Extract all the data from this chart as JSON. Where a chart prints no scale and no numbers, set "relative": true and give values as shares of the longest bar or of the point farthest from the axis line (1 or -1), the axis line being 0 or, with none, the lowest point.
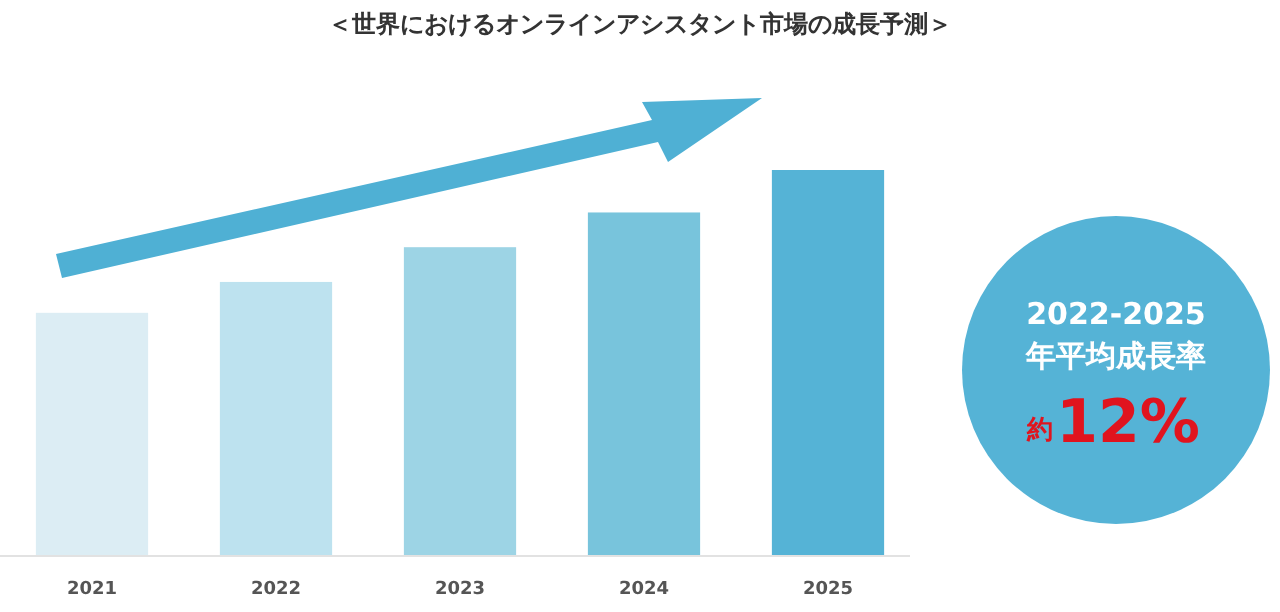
{
  "chart_data": {
    "type": "bar",
    "title": "＜世界におけるオンラインアシスタント市場の成長予測＞",
    "categories": [
      "2021",
      "2022",
      "2023",
      "2024",
      "2025"
    ],
    "values": [
      0.63,
      0.71,
      0.8,
      0.89,
      1
    ],
    "colors": [
      "#dcedf4",
      "#bde2ef",
      "#9dd4e5",
      "#78c4dc",
      "#55b3d6"
    ],
    "relative": true,
    "annotations": [
      "2022-2025",
      "年平均成長率",
      "約",
      "12%"
    ]
  }
}
